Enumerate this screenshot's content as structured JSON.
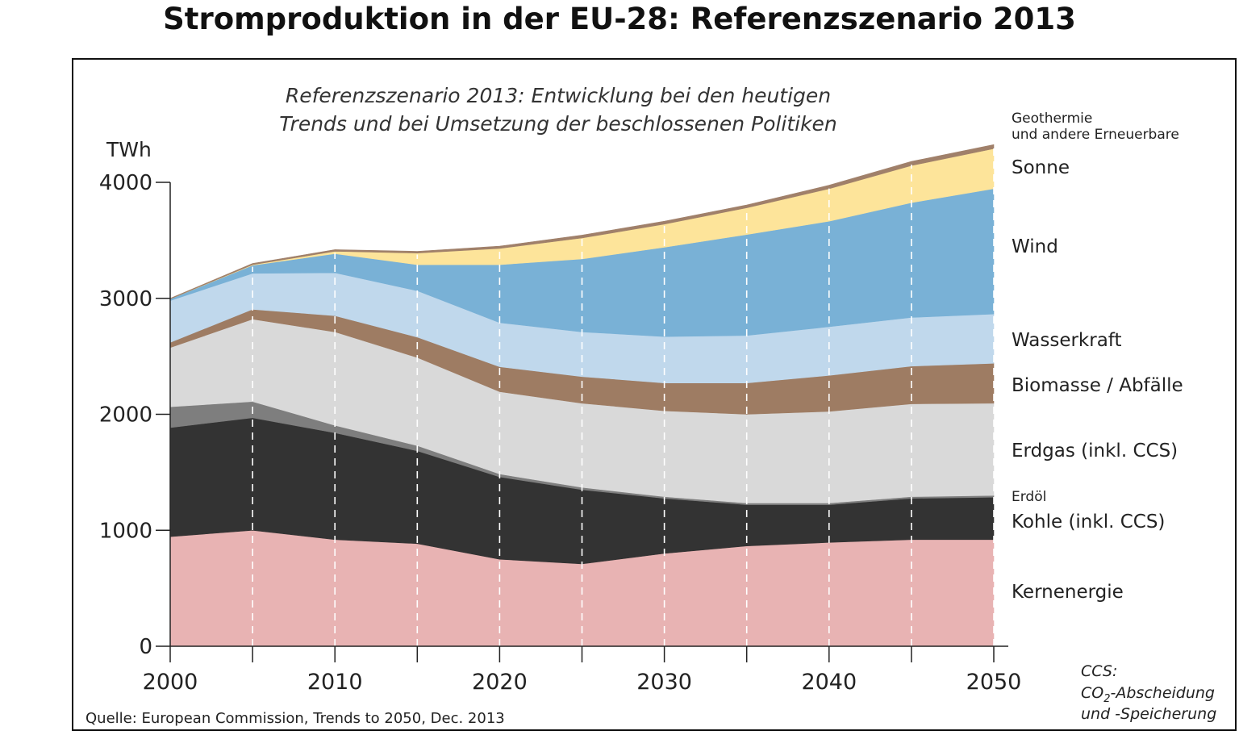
{
  "title": "Stromproduktion in der EU-28: Referenzszenario 2013",
  "subtitle_line1": "Referenzszenario 2013: Entwicklung bei den heutigen",
  "subtitle_line2": "Trends und bei Umsetzung der beschlossenen Politiken",
  "source": "Quelle: European Commission, Trends to 2050, Dec. 2013",
  "note": {
    "line1": "CCS:",
    "line2_prefix": "CO",
    "line2_sub": "2",
    "line2_suffix": "-Abscheidung",
    "line3": "und -Speicherung"
  },
  "chart_data": {
    "type": "area",
    "stacked": true,
    "ylabel": "TWh",
    "ylim": [
      0,
      4000
    ],
    "yticks": [
      0,
      1000,
      2000,
      3000,
      4000
    ],
    "xlim": [
      2000,
      2050
    ],
    "xticks": [
      2000,
      2010,
      2020,
      2030,
      2040,
      2050
    ],
    "x": [
      2000,
      2005,
      2010,
      2015,
      2020,
      2025,
      2030,
      2035,
      2040,
      2045,
      2050
    ],
    "grid": "vertical dashed lines every 5 years",
    "series": [
      {
        "name": "Kernenergie",
        "color": "#e8b3b3",
        "label_lines": [
          "Kernenergie"
        ],
        "values": [
          945,
          1000,
          920,
          885,
          750,
          710,
          800,
          865,
          895,
          920,
          920
        ]
      },
      {
        "name": "Kohle (inkl. CCS)",
        "color": "#333333",
        "label_lines": [
          "Kohle (inkl. CCS)"
        ],
        "values": [
          940,
          970,
          920,
          800,
          710,
          640,
          475,
          355,
          325,
          355,
          365
        ]
      },
      {
        "name": "Erdöl",
        "color": "#7e7e7e",
        "label_lines": [
          "Erdöl"
        ],
        "values": [
          180,
          140,
          65,
          45,
          25,
          20,
          15,
          15,
          15,
          15,
          15
        ]
      },
      {
        "name": "Erdgas (inkl. CCS)",
        "color": "#d9d9d9",
        "label_lines": [
          "Erdgas (inkl. CCS)"
        ],
        "values": [
          510,
          710,
          805,
          760,
          710,
          725,
          740,
          765,
          790,
          800,
          795
        ]
      },
      {
        "name": "Biomasse / Abfälle",
        "color": "#9e7c63",
        "label_lines": [
          "Biomasse / Abfälle"
        ],
        "values": [
          45,
          85,
          140,
          175,
          215,
          230,
          240,
          270,
          310,
          325,
          345
        ]
      },
      {
        "name": "Wasserkraft",
        "color": "#c0d8ec",
        "label_lines": [
          "Wasserkraft"
        ],
        "values": [
          360,
          310,
          370,
          400,
          380,
          385,
          400,
          410,
          420,
          420,
          425
        ]
      },
      {
        "name": "Wind",
        "color": "#79b1d6",
        "label_lines": [
          "Wind"
        ],
        "values": [
          15,
          70,
          165,
          225,
          500,
          630,
          770,
          870,
          910,
          990,
          1080
        ]
      },
      {
        "name": "Sonne",
        "color": "#fde49a",
        "label_lines": [
          "Sonne"
        ],
        "values": [
          0,
          5,
          20,
          100,
          140,
          180,
          200,
          230,
          280,
          320,
          345
        ]
      },
      {
        "name": "Geothermie und andere Erneuerbare",
        "color": "#a0806a",
        "label_lines": [
          "Geothermie",
          "und andere Erneuerbare"
        ],
        "values": [
          5,
          10,
          15,
          15,
          20,
          25,
          25,
          25,
          30,
          35,
          35
        ]
      }
    ]
  }
}
